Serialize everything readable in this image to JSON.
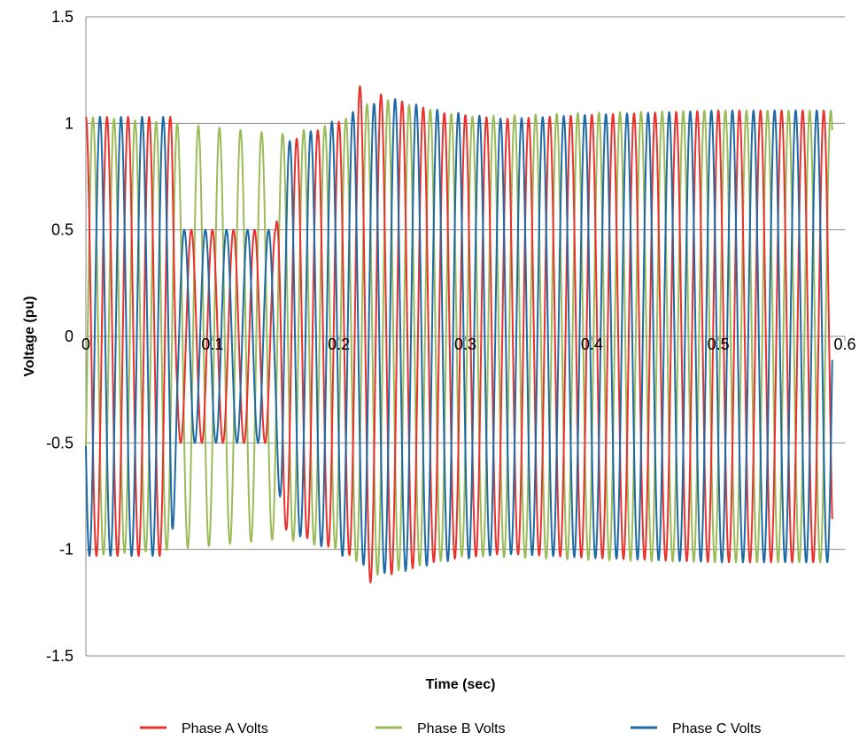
{
  "chart_data": {
    "type": "line",
    "title": "",
    "xlabel": "Time (sec)",
    "ylabel": "Voltage (pu)",
    "xlim": [
      0,
      0.6
    ],
    "ylim": [
      -1.5,
      1.5
    ],
    "x_ticks": [
      0,
      0.1,
      0.2,
      0.3,
      0.4,
      0.5,
      0.6
    ],
    "x_tick_labels": [
      "0",
      "0.1",
      "0.2",
      "0.3",
      "0.4",
      "0.5",
      "0.6"
    ],
    "y_ticks": [
      1.5,
      1,
      0.5,
      0,
      -0.5,
      -1,
      -1.5
    ],
    "y_tick_labels": [
      "1.5",
      "1",
      "0.5",
      "0",
      "-0.5",
      "-1",
      "-1.5"
    ],
    "grid": "horizontal",
    "legend_position": "bottom",
    "frequency_hz": 60,
    "t_end": 0.59,
    "series": [
      {
        "name": "Phase A Volts",
        "color": "#e8322e",
        "phase_deg": 0,
        "envelope": [
          [
            0,
            1.03
          ],
          [
            0.068,
            1.03
          ],
          [
            0.072,
            0.5
          ],
          [
            0.15,
            0.5
          ],
          [
            0.155,
            0.9
          ],
          [
            0.21,
            1.03
          ],
          [
            0.214,
            1.18
          ],
          [
            0.24,
            1.12
          ],
          [
            0.28,
            1.05
          ],
          [
            0.33,
            1.02
          ],
          [
            0.4,
            1.04
          ],
          [
            0.5,
            1.06
          ],
          [
            0.59,
            1.06
          ]
        ]
      },
      {
        "name": "Phase B Volts",
        "color": "#9bbb59",
        "phase_deg": -120,
        "envelope": [
          [
            0,
            1.03
          ],
          [
            0.07,
            1.0
          ],
          [
            0.12,
            0.97
          ],
          [
            0.155,
            0.95
          ],
          [
            0.2,
            1.0
          ],
          [
            0.23,
            1.12
          ],
          [
            0.26,
            1.08
          ],
          [
            0.3,
            1.03
          ],
          [
            0.4,
            1.05
          ],
          [
            0.5,
            1.06
          ],
          [
            0.59,
            1.06
          ]
        ]
      },
      {
        "name": "Phase C Volts",
        "color": "#1f6aa5",
        "phase_deg": 120,
        "envelope": [
          [
            0,
            1.03
          ],
          [
            0.068,
            1.03
          ],
          [
            0.072,
            0.5
          ],
          [
            0.15,
            0.5
          ],
          [
            0.155,
            0.9
          ],
          [
            0.21,
            1.05
          ],
          [
            0.24,
            1.12
          ],
          [
            0.28,
            1.06
          ],
          [
            0.33,
            1.02
          ],
          [
            0.4,
            1.04
          ],
          [
            0.5,
            1.06
          ],
          [
            0.59,
            1.06
          ]
        ]
      }
    ]
  }
}
